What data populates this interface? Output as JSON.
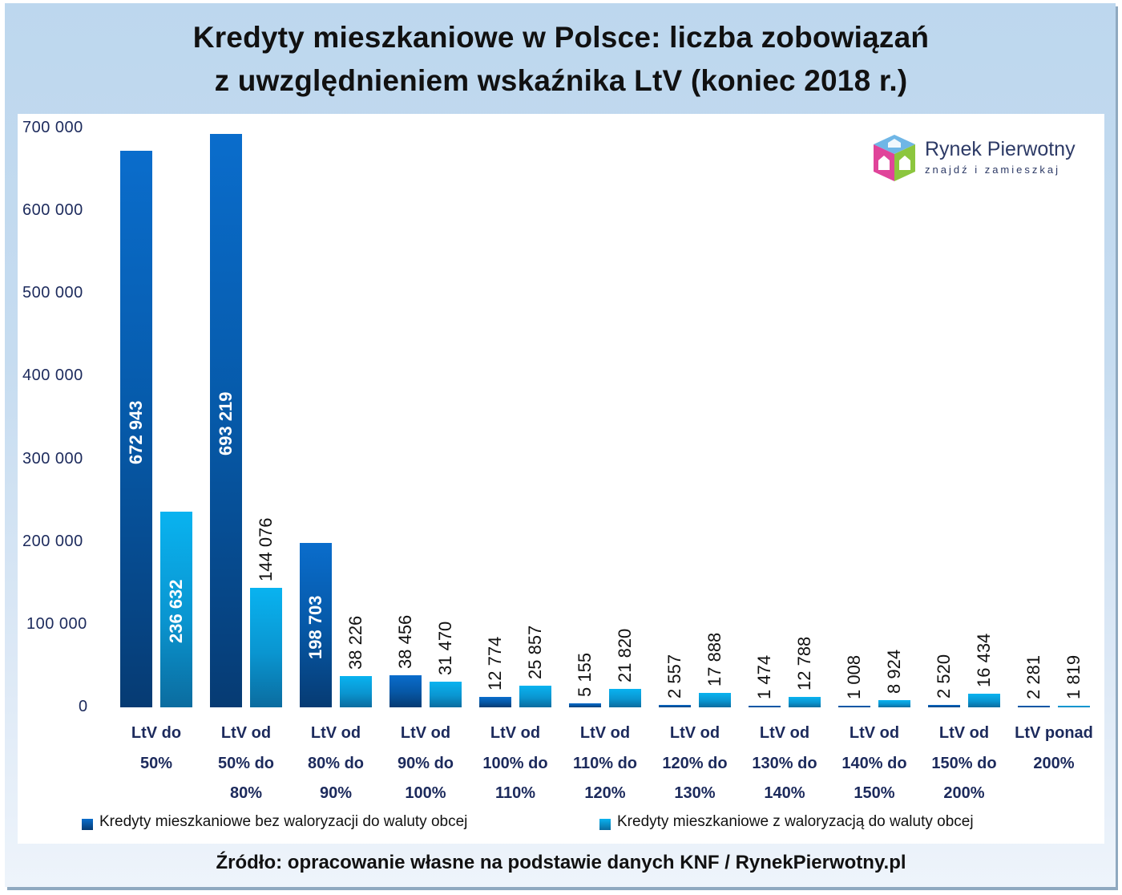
{
  "title": {
    "line1": "Kredyty mieszkaniowe w Polsce: liczba zobowiązań",
    "line2": "z uwzględnieniem wskaźnika LtV (koniec 2018 r.)"
  },
  "logo": {
    "name": "Rynek Pierwotny",
    "tagline": "znajdź i zamieszkaj",
    "icon": "house-cube-icon"
  },
  "legend": {
    "series1": "Kredyty mieszkaniowe bez waloryzacji do waluty obcej",
    "series2": "Kredyty mieszkaniowe z waloryzacją do waluty obcej"
  },
  "source": "Źródło: opracowanie własne na podstawie danych KNF / RynekPierwotny.pl",
  "colors": {
    "dark_series": "#0659a8",
    "light_series": "#09a8e6",
    "background": "#bdd7ee",
    "axis_text": "#1c2a5c"
  },
  "yticks": [
    "700 000",
    "600 000",
    "500 000",
    "400 000",
    "300 000",
    "200 000",
    "100 000",
    "0"
  ],
  "categories_lines": [
    [
      "LtV do",
      "50%",
      ""
    ],
    [
      "LtV od",
      "50% do",
      "80%"
    ],
    [
      "LtV od",
      "80% do",
      "90%"
    ],
    [
      "LtV od",
      "90% do",
      "100%"
    ],
    [
      "LtV od",
      "100% do",
      "110%"
    ],
    [
      "LtV od",
      "110% do",
      "120%"
    ],
    [
      "LtV od",
      "120% do",
      "130%"
    ],
    [
      "LtV od",
      "130% do",
      "140%"
    ],
    [
      "LtV od",
      "140% do",
      "150%"
    ],
    [
      "LtV od",
      "150% do",
      "200%"
    ],
    [
      "LtV ponad",
      "200%",
      ""
    ]
  ],
  "labels": {
    "s1": [
      "672 943",
      "693 219",
      "198 703",
      "38 456",
      "12 774",
      "5 155",
      "2 557",
      "1 474",
      "1 008",
      "2 520",
      "2 281"
    ],
    "s2": [
      "236 632",
      "144 076",
      "38 226",
      "31 470",
      "25 857",
      "21 820",
      "17 888",
      "12 788",
      "8 924",
      "16 434",
      "1 819"
    ]
  },
  "chart_data": {
    "type": "bar",
    "title": "Kredyty mieszkaniowe w Polsce: liczba zobowiązań z uwzględnieniem wskaźnika LtV (koniec 2018 r.)",
    "categories": [
      "LtV do 50%",
      "LtV od 50% do 80%",
      "LtV od 80% do 90%",
      "LtV od 90% do 100%",
      "LtV od 100% do 110%",
      "LtV od 110% do 120%",
      "LtV od 120% do 130%",
      "LtV od 130% do 140%",
      "LtV od 140% do 150%",
      "LtV od 150% do 200%",
      "LtV ponad 200%"
    ],
    "series": [
      {
        "name": "Kredyty mieszkaniowe bez waloryzacji do waluty obcej",
        "values": [
          672943,
          693219,
          198703,
          38456,
          12774,
          5155,
          2557,
          1474,
          1008,
          2520,
          2281
        ]
      },
      {
        "name": "Kredyty mieszkaniowe z waloryzacją do waluty obcej",
        "values": [
          236632,
          144076,
          38226,
          31470,
          25857,
          21820,
          17888,
          12788,
          8924,
          16434,
          1819
        ]
      }
    ],
    "xlabel": "",
    "ylabel": "",
    "ylim": [
      0,
      700000
    ],
    "yticks": [
      0,
      100000,
      200000,
      300000,
      400000,
      500000,
      600000,
      700000
    ],
    "grid": false,
    "legend_position": "bottom",
    "source": "Źródło: opracowanie własne na podstawie danych KNF / RynekPierwotny.pl"
  }
}
